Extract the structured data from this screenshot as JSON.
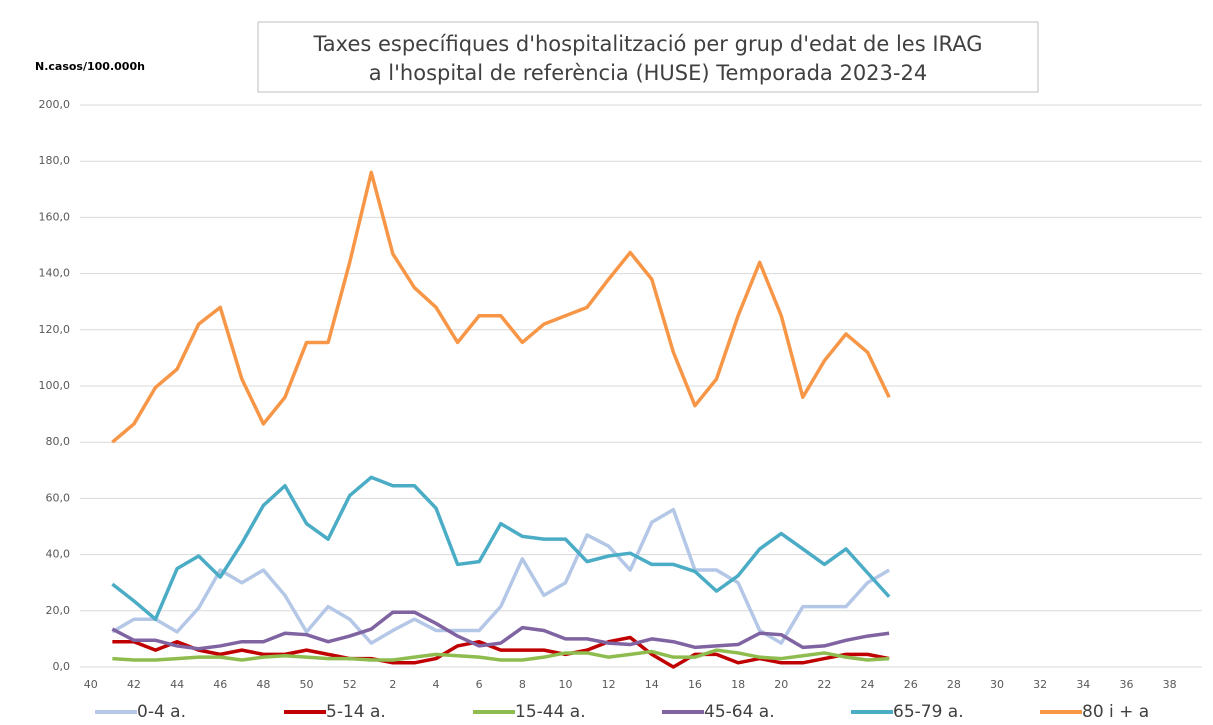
{
  "chart_data": {
    "type": "line",
    "title": [
      "Taxes específiques d'hospitalització per grup d'edat de les IRAG",
      "a l'hospital de referència (HUSE) Temporada 2023-24"
    ],
    "y_label": "N.casos/100.000h",
    "categories": [
      "40",
      null,
      "42",
      null,
      "44",
      null,
      "46",
      null,
      "48",
      null,
      "50",
      null,
      "52",
      null,
      "2",
      null,
      "4",
      null,
      "6",
      null,
      "8",
      null,
      "10",
      null,
      "12",
      null,
      "14",
      null,
      "16",
      null,
      "18",
      null,
      "20",
      null,
      "22",
      null,
      "24",
      null,
      "26",
      null,
      "28",
      null,
      "30",
      null,
      "32",
      null,
      "34",
      null,
      "36",
      null,
      "38",
      null
    ],
    "ylim": [
      0,
      200
    ],
    "yticks": [
      {
        "value": 0,
        "label": "0,0"
      },
      {
        "value": 20,
        "label": "20,0"
      },
      {
        "value": 40,
        "label": "40,0"
      },
      {
        "value": 60,
        "label": "60,0"
      },
      {
        "value": 80,
        "label": "80,0"
      },
      {
        "value": 100,
        "label": "100,0"
      },
      {
        "value": 120,
        "label": "120,0"
      },
      {
        "value": 140,
        "label": "140,0"
      },
      {
        "value": 160,
        "label": "160,0"
      },
      {
        "value": 180,
        "label": "180,0"
      },
      {
        "value": 200,
        "label": "200,0"
      }
    ],
    "grid": true,
    "legend": "bottom",
    "series": [
      {
        "name": "0-4 a.",
        "color": "#b4c7e7",
        "values": [
          null,
          12.5,
          17,
          17,
          12.5,
          21,
          34.5,
          30,
          34.5,
          25.5,
          12.5,
          21.5,
          17,
          8.5,
          13,
          17,
          13,
          13,
          13,
          21.5,
          38.5,
          25.5,
          30,
          47,
          43,
          34.5,
          51.5,
          56,
          34.5,
          34.5,
          30,
          13,
          8.5,
          21.5,
          21.5,
          21.5,
          30,
          34.5,
          null,
          null,
          null,
          null,
          null,
          null,
          null,
          null,
          null,
          null,
          null,
          null,
          null,
          null
        ]
      },
      {
        "name": "5-14 a.",
        "color": "#c00000",
        "values": [
          null,
          9,
          9,
          6,
          9,
          6,
          4.5,
          6,
          4.5,
          4.5,
          6,
          4.5,
          3,
          3,
          1.5,
          1.5,
          3,
          7.5,
          9,
          6,
          6,
          6,
          4.5,
          6,
          9,
          10.5,
          4.5,
          0,
          4.5,
          4.5,
          1.5,
          3,
          1.5,
          1.5,
          3,
          4.5,
          4.5,
          3,
          null,
          null,
          null,
          null,
          null,
          null,
          null,
          null,
          null,
          null,
          null,
          null,
          null,
          null
        ]
      },
      {
        "name": "15-44 a.",
        "color": "#8fbc4f",
        "values": [
          null,
          3,
          2.5,
          2.5,
          3,
          3.5,
          3.5,
          2.5,
          3.5,
          4,
          3.5,
          3,
          3,
          2.5,
          2.5,
          3.5,
          4.5,
          4,
          3.5,
          2.5,
          2.5,
          3.5,
          5,
          5,
          3.5,
          4.5,
          5.5,
          3.5,
          3.5,
          6,
          5,
          3.5,
          3,
          4,
          5,
          3.5,
          2.5,
          3,
          null,
          null,
          null,
          null,
          null,
          null,
          null,
          null,
          null,
          null,
          null,
          null,
          null,
          null
        ]
      },
      {
        "name": "45-64 a.",
        "color": "#8064a2",
        "values": [
          null,
          13.5,
          9.5,
          9.5,
          7.5,
          6.5,
          7.5,
          9,
          9,
          12,
          11.5,
          9,
          11,
          13.5,
          19.5,
          19.5,
          15.5,
          11,
          7.5,
          8.5,
          14,
          13,
          10,
          10,
          8.5,
          8,
          10,
          9,
          7,
          7.5,
          8,
          12,
          11.5,
          7,
          7.5,
          9.5,
          11,
          12,
          null,
          null,
          null,
          null,
          null,
          null,
          null,
          null,
          null,
          null,
          null,
          null,
          null,
          null
        ]
      },
      {
        "name": "65-79 a.",
        "color": "#4bacc6",
        "values": [
          null,
          29.5,
          23.5,
          17,
          35,
          39.5,
          32,
          44,
          57.5,
          64.5,
          51,
          45.5,
          61,
          67.5,
          64.5,
          64.5,
          56.5,
          36.5,
          37.5,
          51,
          46.5,
          45.5,
          45.5,
          37.5,
          39.5,
          40.5,
          36.5,
          36.5,
          34,
          27,
          32.5,
          42,
          47.5,
          42,
          36.5,
          42,
          33.5,
          25,
          null,
          null,
          null,
          null,
          null,
          null,
          null,
          null,
          null,
          null,
          null,
          null,
          null,
          null
        ]
      },
      {
        "name": "80 i + a",
        "color": "#f79646",
        "values": [
          null,
          80,
          86.5,
          99.5,
          106,
          122,
          128,
          102.5,
          86.5,
          96,
          115.5,
          115.5,
          144,
          176,
          147,
          135,
          128,
          115.5,
          125,
          125,
          115.5,
          122,
          125,
          128,
          138,
          147.5,
          138,
          112,
          93,
          102.5,
          125,
          144,
          125,
          96,
          109,
          118.5,
          112,
          96,
          null,
          null,
          null,
          null,
          null,
          null,
          null,
          null,
          null,
          null,
          null,
          null,
          null,
          null
        ]
      }
    ]
  }
}
